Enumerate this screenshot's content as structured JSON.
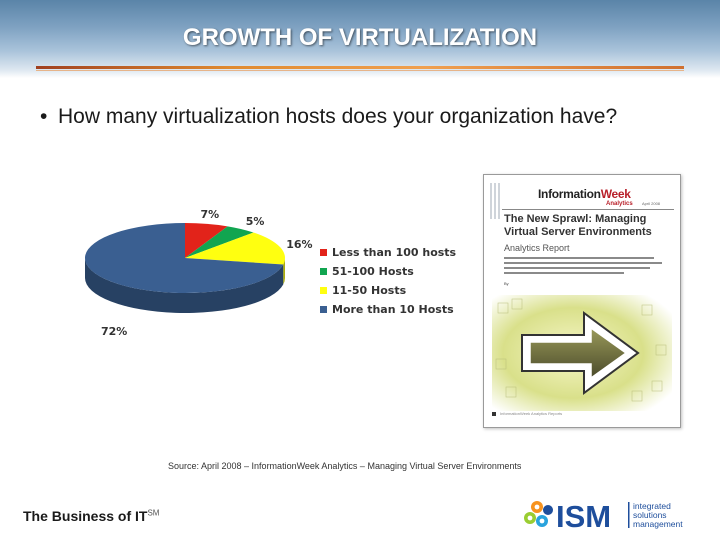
{
  "slide": {
    "title": "GROWTH OF VIRTUALIZATION",
    "bullet": "How many virtualization hosts does your organization have?",
    "source": "Source:  April 2008 – InformationWeek Analytics – Managing Virtual Server Environments",
    "footer_left": "The Business of IT",
    "footer_sup": "SM"
  },
  "report_cover": {
    "brand_left": "Information",
    "brand_right": "Week",
    "brand_sub": "Analytics",
    "date": "April 2008",
    "title": "The New Sprawl: Managing Virtual Server Environments",
    "kicker": "Analytics Report",
    "byline": "By",
    "footer": "InformationWeek Analytics Reports"
  },
  "ism_logo": {
    "letters": "ISM",
    "line1": "integrated",
    "line2": "solutions",
    "line3": "management"
  },
  "colors": {
    "title_band": "#7fa2c2",
    "rule": "#e08a30"
  },
  "chart_data": {
    "type": "pie",
    "style": "3d",
    "slices": [
      {
        "label": "Less than 100 hosts",
        "value": 7,
        "value_label": "7%",
        "color": "#e2231a"
      },
      {
        "label": "51-100 Hosts",
        "value": 5,
        "value_label": "5%",
        "color": "#11a550"
      },
      {
        "label": "11-50 Hosts",
        "value": 16,
        "value_label": "16%",
        "color": "#ffff10"
      },
      {
        "label": "More than 10 Hosts",
        "value": 72,
        "value_label": "72%",
        "color": "#3a5f91"
      }
    ],
    "legend_position": "right"
  }
}
